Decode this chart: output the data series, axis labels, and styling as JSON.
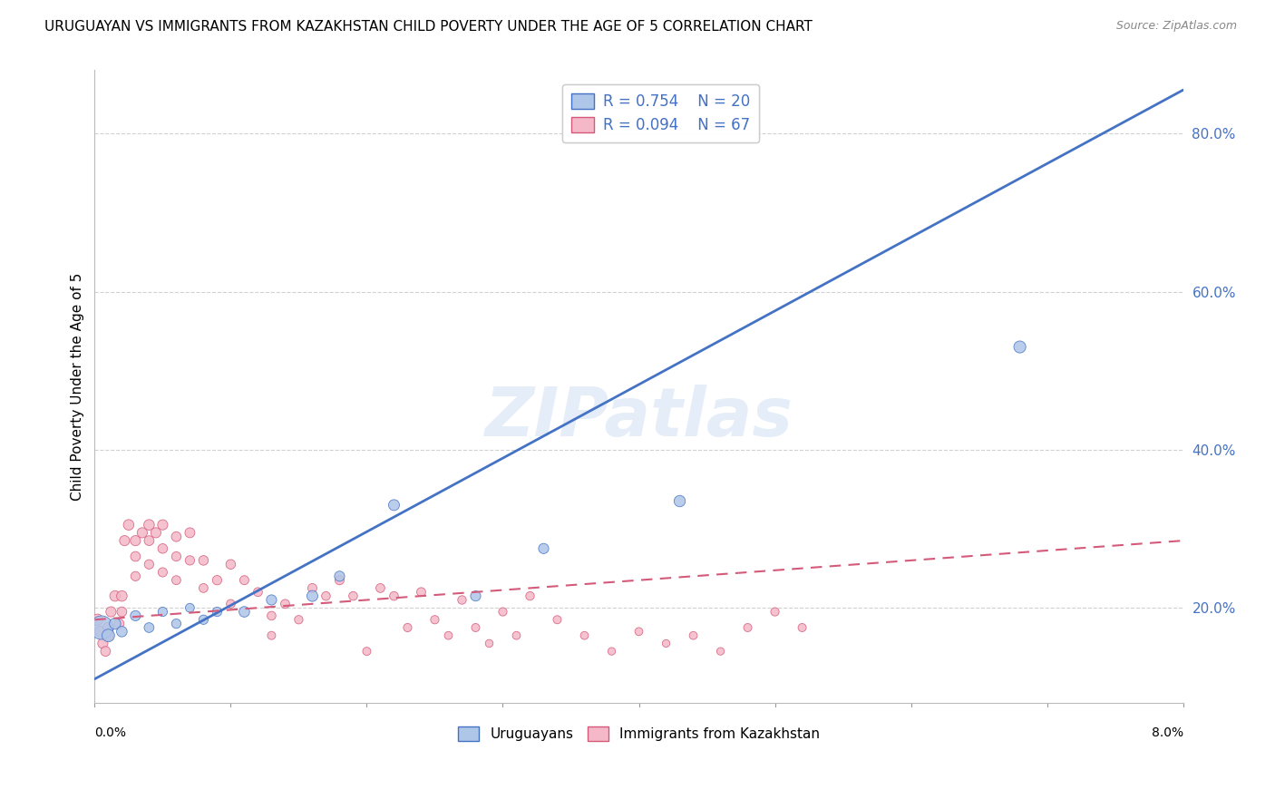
{
  "title": "URUGUAYAN VS IMMIGRANTS FROM KAZAKHSTAN CHILD POVERTY UNDER THE AGE OF 5 CORRELATION CHART",
  "source": "Source: ZipAtlas.com",
  "ylabel": "Child Poverty Under the Age of 5",
  "yticks": [
    0.2,
    0.4,
    0.6,
    0.8
  ],
  "ytick_labels": [
    "20.0%",
    "40.0%",
    "60.0%",
    "80.0%"
  ],
  "xlim": [
    0.0,
    0.08
  ],
  "ylim": [
    0.08,
    0.88
  ],
  "watermark": "ZIPatlas",
  "blue_color": "#aec6e8",
  "blue_dark": "#4472c4",
  "pink_color": "#f4b8c8",
  "pink_dark": "#d45a7a",
  "background": "#ffffff",
  "grid_color": "#cccccc",
  "uruguayan_x": [
    0.0005,
    0.001,
    0.0015,
    0.002,
    0.003,
    0.004,
    0.005,
    0.006,
    0.007,
    0.008,
    0.009,
    0.011,
    0.013,
    0.016,
    0.018,
    0.022,
    0.028,
    0.033,
    0.043,
    0.068
  ],
  "uruguayan_y": [
    0.175,
    0.165,
    0.18,
    0.17,
    0.19,
    0.175,
    0.195,
    0.18,
    0.2,
    0.185,
    0.195,
    0.195,
    0.21,
    0.215,
    0.24,
    0.33,
    0.215,
    0.275,
    0.335,
    0.53
  ],
  "uruguayan_size": [
    350,
    100,
    80,
    70,
    65,
    60,
    55,
    55,
    50,
    55,
    55,
    70,
    65,
    75,
    65,
    75,
    65,
    65,
    80,
    90
  ],
  "kazakhstan_x": [
    0.0002,
    0.0004,
    0.0006,
    0.0008,
    0.001,
    0.001,
    0.0012,
    0.0015,
    0.0018,
    0.002,
    0.002,
    0.0022,
    0.0025,
    0.003,
    0.003,
    0.003,
    0.0035,
    0.004,
    0.004,
    0.004,
    0.0045,
    0.005,
    0.005,
    0.005,
    0.006,
    0.006,
    0.006,
    0.007,
    0.007,
    0.008,
    0.008,
    0.009,
    0.01,
    0.01,
    0.011,
    0.012,
    0.013,
    0.013,
    0.014,
    0.015,
    0.016,
    0.017,
    0.018,
    0.019,
    0.02,
    0.021,
    0.022,
    0.023,
    0.024,
    0.025,
    0.026,
    0.027,
    0.028,
    0.029,
    0.03,
    0.031,
    0.032,
    0.034,
    0.036,
    0.038,
    0.04,
    0.042,
    0.044,
    0.046,
    0.048,
    0.05,
    0.052
  ],
  "kazakhstan_y": [
    0.185,
    0.17,
    0.155,
    0.145,
    0.175,
    0.165,
    0.195,
    0.215,
    0.18,
    0.215,
    0.195,
    0.285,
    0.305,
    0.285,
    0.265,
    0.24,
    0.295,
    0.305,
    0.285,
    0.255,
    0.295,
    0.305,
    0.275,
    0.245,
    0.29,
    0.265,
    0.235,
    0.295,
    0.26,
    0.26,
    0.225,
    0.235,
    0.255,
    0.205,
    0.235,
    0.22,
    0.19,
    0.165,
    0.205,
    0.185,
    0.225,
    0.215,
    0.235,
    0.215,
    0.145,
    0.225,
    0.215,
    0.175,
    0.22,
    0.185,
    0.165,
    0.21,
    0.175,
    0.155,
    0.195,
    0.165,
    0.215,
    0.185,
    0.165,
    0.145,
    0.17,
    0.155,
    0.165,
    0.145,
    0.175,
    0.195,
    0.175
  ],
  "kazakhstan_size": [
    80,
    70,
    65,
    60,
    75,
    65,
    65,
    70,
    60,
    70,
    60,
    65,
    70,
    65,
    60,
    55,
    65,
    70,
    60,
    55,
    65,
    65,
    58,
    53,
    60,
    55,
    50,
    62,
    55,
    58,
    50,
    55,
    58,
    48,
    52,
    50,
    48,
    42,
    50,
    45,
    52,
    48,
    53,
    48,
    42,
    50,
    48,
    44,
    50,
    44,
    40,
    46,
    42,
    38,
    44,
    40,
    46,
    42,
    40,
    36,
    40,
    36,
    40,
    36,
    42,
    44,
    42
  ],
  "uru_line_x": [
    0.0,
    0.08
  ],
  "uru_line_y": [
    0.11,
    0.855
  ],
  "kaz_line_x": [
    0.0,
    0.08
  ],
  "kaz_line_y": [
    0.185,
    0.285
  ]
}
